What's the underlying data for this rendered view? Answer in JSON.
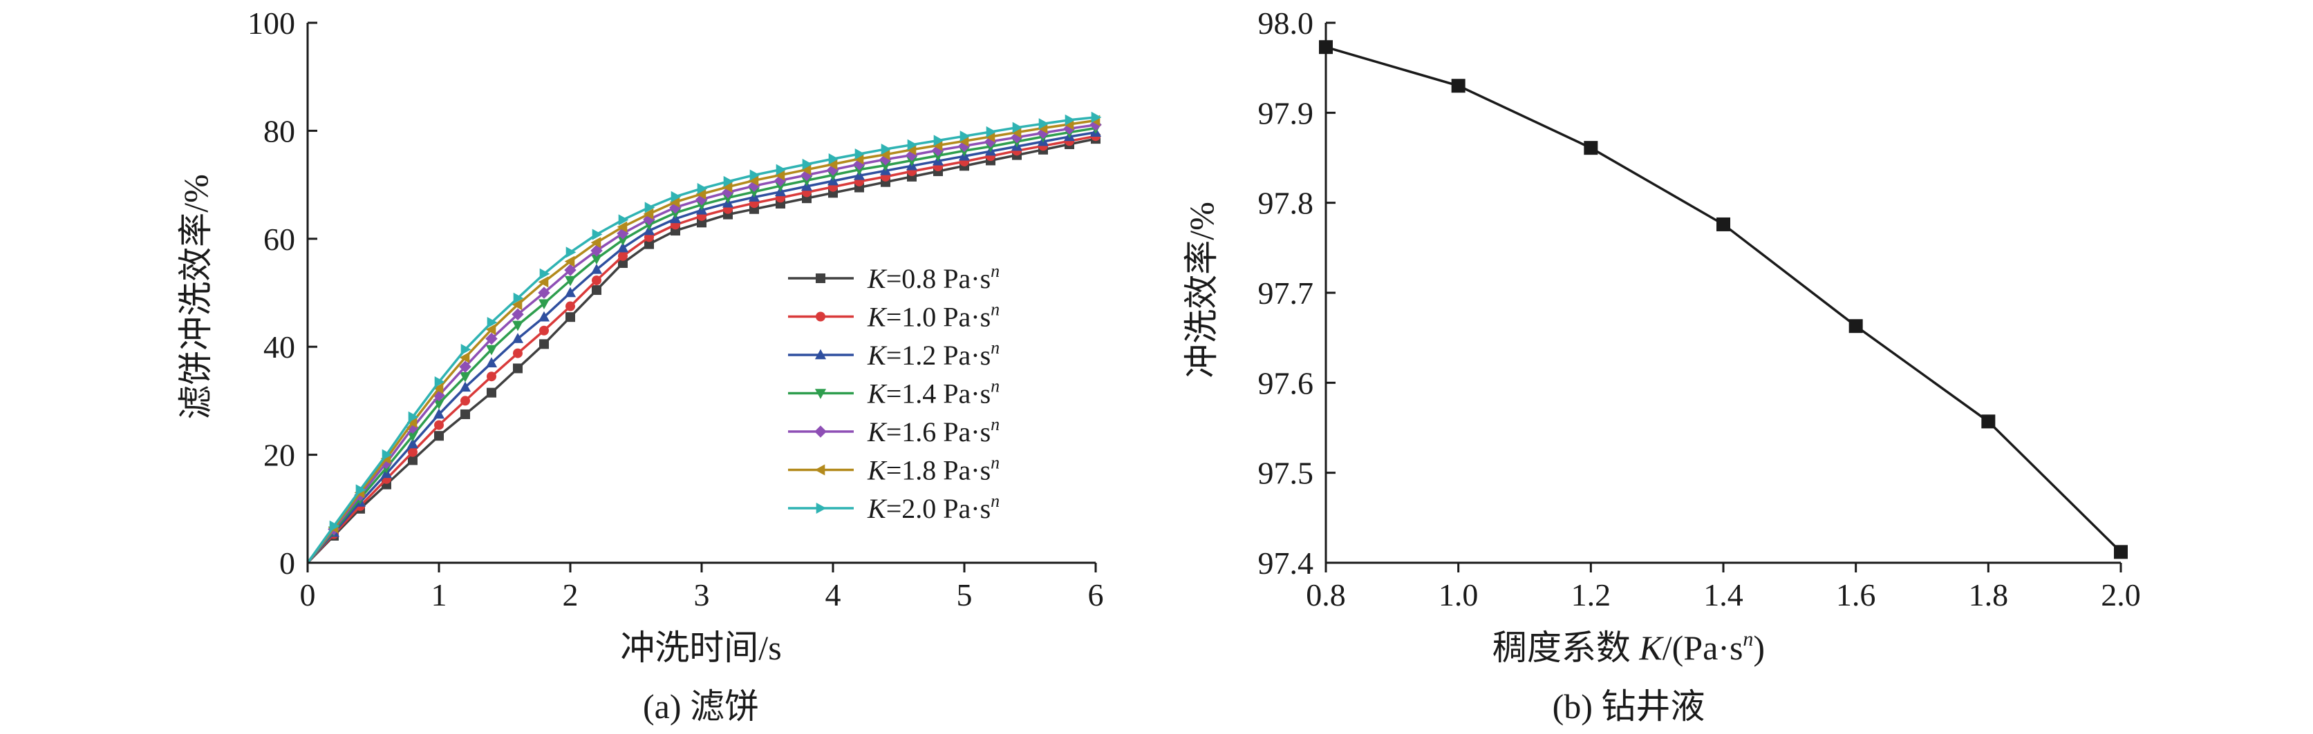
{
  "chart_data": [
    {
      "type": "line",
      "caption": "(a) 滤饼",
      "xlabel": "冲洗时间/s",
      "ylabel": "滤饼冲洗效率/%",
      "xlim": [
        0,
        6
      ],
      "ylim": [
        0,
        100
      ],
      "xticks": [
        "0",
        "1",
        "2",
        "3",
        "4",
        "5",
        "6"
      ],
      "yticks": [
        "0",
        "20",
        "40",
        "60",
        "80",
        "100"
      ],
      "legend_position": "center-right",
      "x": [
        0,
        0.2,
        0.4,
        0.6,
        0.8,
        1.0,
        1.2,
        1.4,
        1.6,
        1.8,
        2.0,
        2.2,
        2.4,
        2.6,
        2.8,
        3.0,
        3.2,
        3.4,
        3.6,
        3.8,
        4.0,
        4.2,
        4.4,
        4.6,
        4.8,
        5.0,
        5.2,
        5.4,
        5.6,
        5.8,
        6.0
      ],
      "series": [
        {
          "k_label": "K",
          "rest_label": "=0.8 Pa·s",
          "sup": "n",
          "color": "#404040",
          "marker": "square",
          "values": [
            0,
            5.0,
            10.0,
            14.5,
            19.0,
            23.5,
            27.5,
            31.5,
            36.0,
            40.5,
            45.5,
            50.5,
            55.5,
            59.0,
            61.5,
            63.0,
            64.5,
            65.5,
            66.5,
            67.5,
            68.5,
            69.5,
            70.5,
            71.5,
            72.5,
            73.5,
            74.5,
            75.5,
            76.5,
            77.5,
            78.5
          ]
        },
        {
          "k_label": "K",
          "rest_label": "=1.0 Pa·s",
          "sup": "n",
          "color": "#d93a3a",
          "marker": "circle",
          "values": [
            0,
            5.3,
            10.5,
            15.5,
            20.5,
            25.5,
            30.0,
            34.5,
            38.8,
            43.0,
            47.5,
            52.3,
            56.8,
            60.3,
            62.6,
            64.2,
            65.5,
            66.6,
            67.6,
            68.6,
            69.6,
            70.6,
            71.5,
            72.5,
            73.4,
            74.3,
            75.3,
            76.3,
            77.2,
            78.1,
            79.0
          ]
        },
        {
          "k_label": "K",
          "rest_label": "=1.2 Pa·s",
          "sup": "n",
          "color": "#2f4f9f",
          "marker": "triangle-up",
          "values": [
            0,
            5.6,
            11.2,
            16.5,
            22.0,
            27.5,
            32.5,
            37.0,
            41.5,
            45.5,
            50.0,
            54.3,
            58.3,
            61.5,
            63.7,
            65.3,
            66.6,
            67.7,
            68.7,
            69.7,
            70.7,
            71.7,
            72.6,
            73.5,
            74.4,
            75.3,
            76.2,
            77.1,
            78.0,
            78.9,
            79.7
          ]
        },
        {
          "k_label": "K",
          "rest_label": "=1.4 Pa·s",
          "sup": "n",
          "color": "#2e9e4e",
          "marker": "triangle-down",
          "values": [
            0,
            5.9,
            11.9,
            17.6,
            23.5,
            29.5,
            34.5,
            39.5,
            44.0,
            48.0,
            52.3,
            56.3,
            59.8,
            62.6,
            64.8,
            66.3,
            67.6,
            68.7,
            69.8,
            70.8,
            71.8,
            72.8,
            73.6,
            74.5,
            75.4,
            76.3,
            77.1,
            78.0,
            78.9,
            79.7,
            80.5
          ]
        },
        {
          "k_label": "K",
          "rest_label": "=1.6 Pa·s",
          "sup": "n",
          "color": "#8e4fb5",
          "marker": "diamond",
          "values": [
            0,
            6.2,
            12.5,
            18.5,
            25.0,
            31.0,
            36.3,
            41.5,
            46.0,
            50.0,
            54.2,
            57.8,
            61.0,
            63.6,
            65.8,
            67.3,
            68.6,
            69.8,
            70.8,
            71.8,
            72.8,
            73.8,
            74.7,
            75.5,
            76.4,
            77.2,
            78.0,
            78.8,
            79.6,
            80.4,
            81.1
          ]
        },
        {
          "k_label": "K",
          "rest_label": "=1.8 Pa·s",
          "sup": "n",
          "color": "#b38a1c",
          "marker": "triangle-left",
          "values": [
            0,
            6.5,
            13.0,
            19.3,
            26.0,
            32.3,
            38.0,
            43.2,
            47.8,
            52.0,
            55.8,
            59.3,
            62.2,
            64.6,
            66.8,
            68.3,
            69.6,
            70.8,
            71.8,
            72.8,
            73.8,
            74.8,
            75.6,
            76.5,
            77.3,
            78.1,
            78.9,
            79.7,
            80.5,
            81.2,
            81.9
          ]
        },
        {
          "k_label": "K",
          "rest_label": "=2.0 Pa·s",
          "sup": "n",
          "color": "#2fb3b3",
          "marker": "triangle-right",
          "values": [
            0,
            6.8,
            13.5,
            20.0,
            27.0,
            33.5,
            39.5,
            44.5,
            49.0,
            53.5,
            57.5,
            60.8,
            63.5,
            65.8,
            67.8,
            69.3,
            70.6,
            71.8,
            72.8,
            73.8,
            74.8,
            75.7,
            76.6,
            77.4,
            78.2,
            79.0,
            79.8,
            80.6,
            81.3,
            82.0,
            82.5
          ]
        }
      ]
    },
    {
      "type": "line",
      "caption": "(b) 钻井液",
      "xlabel_main": "稠度系数 ",
      "xlabel_k": "K",
      "xlabel_unit": "/(Pa·s",
      "xlabel_sup": "n",
      "xlabel_close": ")",
      "ylabel": "冲洗效率/%",
      "xlim": [
        0.8,
        2.0
      ],
      "ylim": [
        97.4,
        98.0
      ],
      "xticks": [
        "0.8",
        "1.0",
        "1.2",
        "1.4",
        "1.6",
        "1.8",
        "2.0"
      ],
      "yticks": [
        "97.4",
        "97.5",
        "97.6",
        "97.7",
        "97.8",
        "97.9",
        "98.0"
      ],
      "color": "#1a1a1a",
      "marker": "square",
      "x": [
        0.8,
        1.0,
        1.2,
        1.4,
        1.6,
        1.8,
        2.0
      ],
      "values": [
        97.973,
        97.93,
        97.861,
        97.776,
        97.663,
        97.557,
        97.412
      ]
    }
  ]
}
